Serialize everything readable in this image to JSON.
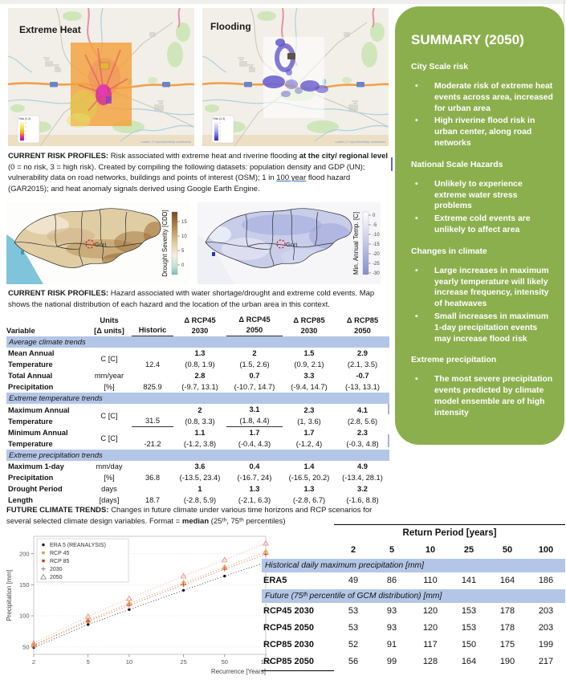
{
  "maps_city": {
    "heat_label": "Extreme Heat",
    "flood_label": "Flooding",
    "legend_title": "Risk (0-3)",
    "attribution": "Leaflet | © OpenStreetMap contributors"
  },
  "maps_national": {
    "drought": {
      "axis_label": "Drought Severity [CDD]",
      "ticks": [
        "15",
        "10",
        "5",
        "0"
      ],
      "city": "Gori"
    },
    "temperature": {
      "axis_label": "Min. Annual Temp. [C]",
      "ticks": [
        "0",
        "-5",
        "-10",
        "-15",
        "-20",
        "-25",
        "-30"
      ],
      "city": "Gori"
    }
  },
  "captions": {
    "city_risk": {
      "segments": [
        {
          "t": "CURRENT RISK PROFILES: ",
          "b": 1
        },
        {
          "t": "Risk associated with extreme heat and riverine flooding "
        },
        {
          "t": "at the city/ regional level ",
          "b": 1
        },
        {
          "t": "(0 = no risk, 3 = high risk). Created by compiling the following datasets: population density and GDP (UN); vulnerability data on road networks, buildings and points of interest (OSM); 1 in "
        },
        {
          "t": "100 year",
          "u": 1
        },
        {
          "t": " flood hazard (GAR2015); and heat anomaly signals derived using Google Earth Engine."
        }
      ]
    },
    "national_risk": {
      "segments": [
        {
          "t": "CURRENT RISK PROFILES: ",
          "b": 1
        },
        {
          "t": "Hazard associated with water shortage/drought and extreme cold events. Map shows the national distribution of each hazard and the location of the urban area in this context."
        }
      ]
    },
    "future_trends": {
      "segments": [
        {
          "t": "FUTURE CLIMATE TRENDS: ",
          "b": 1
        },
        {
          "t": "Changes in future climate under various time horizons and RCP scenarios for several selected climate design variables. Format = "
        },
        {
          "t": "median",
          "b": 1
        },
        {
          "t": " (25ᵗʰ, 75ᵗʰ percentiles)"
        }
      ]
    }
  },
  "climate_table": {
    "headers": [
      {
        "top": "",
        "bottom": "Variable"
      },
      {
        "top": "Units",
        "bottom": "[Δ units]"
      },
      {
        "top": "",
        "bottom": "Historic",
        "underline": true
      },
      {
        "top": "Δ RCP45",
        "bottom": "2030"
      },
      {
        "top": "Δ RCP45",
        "bottom": "2050",
        "underline": true
      },
      {
        "top": "Δ RCP85",
        "bottom": "2030"
      },
      {
        "top": "Δ RCP85",
        "bottom": "2050"
      }
    ],
    "sections": [
      {
        "title": "Average climate trends",
        "rows": [
          {
            "variable": [
              "Mean Annual",
              "Temperature"
            ],
            "units": [
              "C [C]"
            ],
            "historic": "12.4",
            "deltas": [
              [
                "1.3",
                "(0.8, 1.9)"
              ],
              [
                "2",
                "(1.5, 2.6)"
              ],
              [
                "1.5",
                "(0.9, 2.1)"
              ],
              [
                "2.9",
                "(2.1, 3.5)"
              ]
            ]
          },
          {
            "variable": [
              "Total Annual",
              "Precipitation"
            ],
            "units": [
              "mm/year",
              "[%]"
            ],
            "historic": "825.9",
            "deltas": [
              [
                "2.8",
                "(-9.7, 13.1)"
              ],
              [
                "0.7",
                "(-10.7, 14.7)"
              ],
              [
                "3.3",
                "(-9.4, 14.7)"
              ],
              [
                "-0.7",
                "(-13, 13.1)"
              ]
            ]
          }
        ]
      },
      {
        "title": "Extreme temperature trends",
        "rows": [
          {
            "variable": [
              "Maximum Annual",
              "Temperature"
            ],
            "units": [
              "C [C]"
            ],
            "historic": "31.5",
            "historic_underline": true,
            "underline_delta": 1,
            "deltas": [
              [
                "2",
                "(0.8, 3.3)"
              ],
              [
                "3.1",
                "(1.8, 4.4)"
              ],
              [
                "2.3",
                "(1, 3.6)"
              ],
              [
                "4.1",
                "(2.8, 5.6)"
              ]
            ]
          },
          {
            "variable": [
              "Minimum Annual",
              "Temperature"
            ],
            "units": [
              "C [C]"
            ],
            "historic": "-21.2",
            "deltas": [
              [
                "1.1",
                "(-1.2, 3.8)"
              ],
              [
                "1.7",
                "(-0.4, 4.3)"
              ],
              [
                "1.7",
                "(-1.2, 4)"
              ],
              [
                "2.3",
                "(-0.3, 4.8)"
              ]
            ]
          }
        ]
      },
      {
        "title": "Extreme precipitation trends",
        "rows": [
          {
            "variable": [
              "Maximum 1-day",
              "Precipitation"
            ],
            "units": [
              "mm/day",
              "[%]"
            ],
            "historic": "36.8",
            "deltas": [
              [
                "3.6",
                "(-13.5, 23.4)"
              ],
              [
                "0.4",
                "(-16.7, 24)"
              ],
              [
                "1.4",
                "(-16.5, 20.2)"
              ],
              [
                "4.9",
                "(-13.4, 28.1)"
              ]
            ]
          },
          {
            "variable": [
              "Drought Period",
              "Length"
            ],
            "units": [
              "days",
              "[days]"
            ],
            "historic": "18.7",
            "deltas": [
              [
                "1",
                "(-2.8, 5.9)"
              ],
              [
                "1.3",
                "(-2.1, 6.3)"
              ],
              [
                "1.3",
                "(-2.8, 6.7)"
              ],
              [
                "3.2",
                "(-1.6, 8.8)"
              ]
            ]
          }
        ]
      }
    ]
  },
  "return_table": {
    "header": "Return Period [years]",
    "columns": [
      "2",
      "5",
      "10",
      "25",
      "50",
      "100"
    ],
    "sections": [
      {
        "band": "Historical daily maximum precipitation [mm]",
        "rows": [
          {
            "label": "ERA5",
            "values": [
              "49",
              "86",
              "110",
              "141",
              "164",
              "186"
            ]
          }
        ]
      },
      {
        "band": "Future (75ᵗʰ percentile of GCM distribution) [mm]",
        "rows": [
          {
            "label": "RCP45 2030",
            "values": [
              "53",
              "93",
              "120",
              "153",
              "178",
              "203"
            ]
          },
          {
            "label": "RCP45 2050",
            "values": [
              "53",
              "93",
              "120",
              "153",
              "178",
              "203"
            ]
          },
          {
            "label": "RCP85 2030",
            "values": [
              "52",
              "91",
              "117",
              "150",
              "175",
              "199"
            ]
          },
          {
            "label": "RCP85 2050",
            "values": [
              "56",
              "99",
              "128",
              "164",
              "190",
              "217"
            ]
          }
        ]
      }
    ]
  },
  "chart_data": {
    "type": "scatter",
    "x": [
      2,
      5,
      10,
      25,
      50,
      100
    ],
    "x_scale": "log",
    "xlabel": "Recurrence [Years]",
    "ylabel": "Precipitation [mm]",
    "yticks": [
      50,
      100,
      150,
      200
    ],
    "ylim": [
      38,
      228
    ],
    "legend": [
      {
        "label": "ERA 5 (REANALYSIS)",
        "marker": "dot",
        "color": "#1a1a1a"
      },
      {
        "label": "RCP 45",
        "marker": "square",
        "color": "#e2993f"
      },
      {
        "label": "RCP 85",
        "marker": "square",
        "color": "#cc3a33"
      },
      {
        "label": "2030",
        "marker": "plus",
        "color": "#8a8a8a"
      },
      {
        "label": "2050",
        "marker": "triangle",
        "color": "#9a9a9a"
      }
    ],
    "series": [
      {
        "name": "ERA 5 (REANALYSIS)",
        "marker": "dot",
        "color": "#1a1a1a",
        "values": [
          49,
          86,
          110,
          141,
          164,
          186
        ]
      },
      {
        "name": "RCP 45 2030",
        "marker": "plus",
        "color": "#e2993f",
        "values": [
          53,
          93,
          120,
          153,
          178,
          203
        ]
      },
      {
        "name": "RCP 45 2050",
        "marker": "triangle",
        "color": "#e8a84c",
        "values": [
          53,
          93,
          120,
          153,
          178,
          203
        ]
      },
      {
        "name": "RCP 85 2030",
        "marker": "plus",
        "color": "#d0453e",
        "values": [
          52,
          91,
          117,
          150,
          175,
          199
        ]
      },
      {
        "name": "RCP 85 2050",
        "marker": "triangle",
        "color": "#f0978e",
        "values": [
          56,
          99,
          128,
          164,
          190,
          217
        ]
      }
    ]
  },
  "sidebar": {
    "title": "SUMMARY (2050)",
    "sections": [
      {
        "heading": "City Scale risk",
        "bullets": [
          "Moderate risk of extreme heat events across area, increased for urban area",
          "High riverine flood risk in urban center, along road networks"
        ]
      },
      {
        "heading": "National Scale Hazards",
        "bullets": [
          "Unlikely to experience extreme water stress problems",
          "Extreme cold events are unlikely to affect area"
        ]
      },
      {
        "heading": "Changes in climate",
        "bullets": [
          "Large increases in maximum yearly temperature will likely increase frequency, intensity of heatwaves",
          "Small increases in maximum 1-day precipitation events may increase flood risk"
        ]
      },
      {
        "heading": "Extreme precipitation",
        "bullets": [
          "The most severe precipitation events predicted by climate model ensemble are of high intensity"
        ]
      }
    ]
  }
}
